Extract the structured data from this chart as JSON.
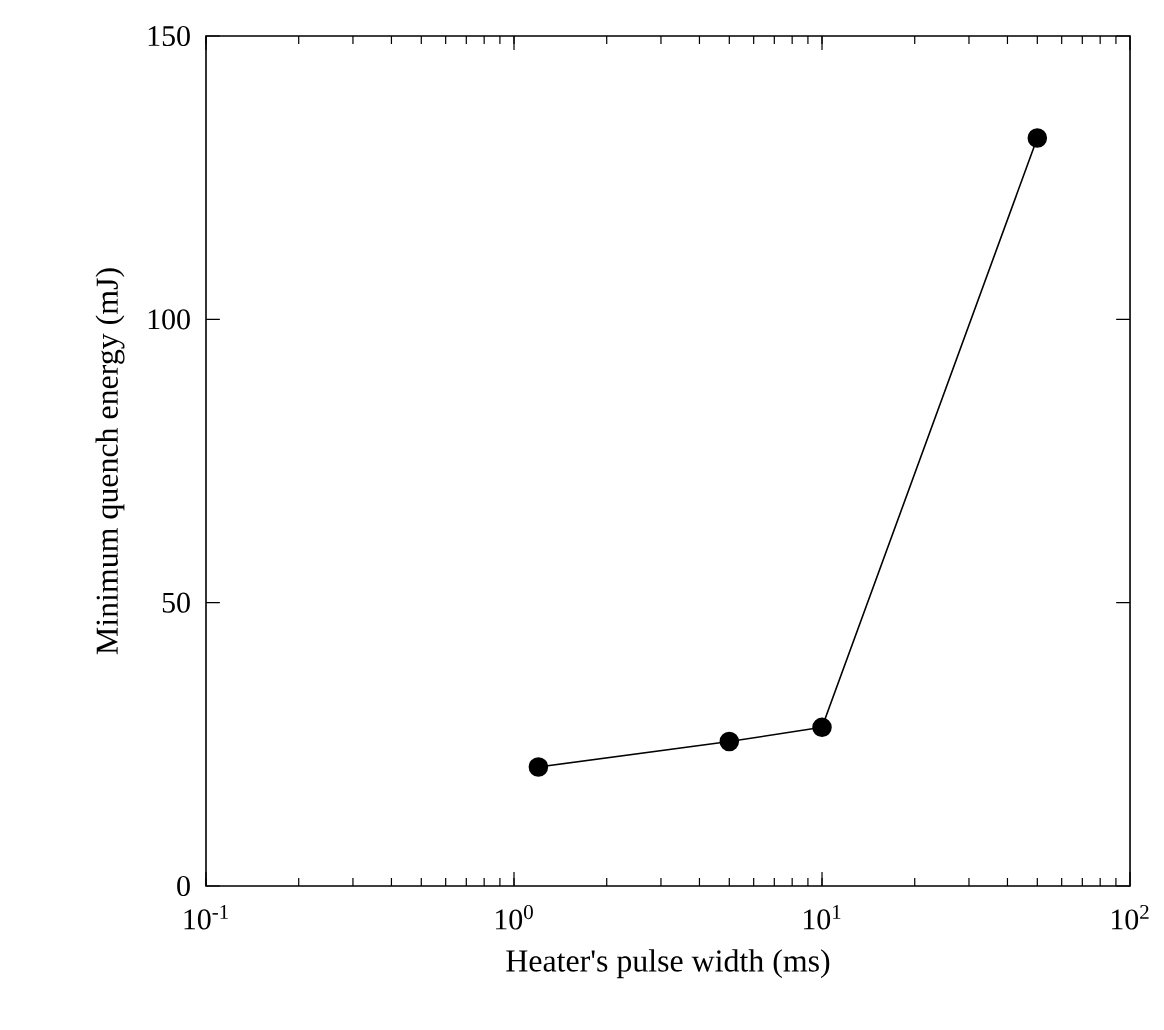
{
  "chart_data": {
    "type": "line",
    "xlabel": "Heater's pulse width (ms)",
    "ylabel": "Minimum quench energy (mJ)",
    "x": [
      1.2,
      5,
      10,
      50
    ],
    "series": [
      {
        "color": "#000000",
        "values": [
          21,
          25.5,
          28,
          132
        ]
      }
    ],
    "log": "x",
    "marker": "circle",
    "line_style": "solid",
    "grid": false,
    "xlim": [
      0.1,
      100
    ],
    "xticks": [
      {
        "value": 0.1,
        "label": "10$^{-1}$"
      },
      {
        "value": 1,
        "label": "10$^{0}$"
      },
      {
        "value": 10,
        "label": "10$^{1}$"
      },
      {
        "value": 100,
        "label": "10$^{2}$"
      }
    ],
    "ylim": [
      0,
      150
    ],
    "yticks": [
      0,
      50,
      100,
      150
    ]
  }
}
